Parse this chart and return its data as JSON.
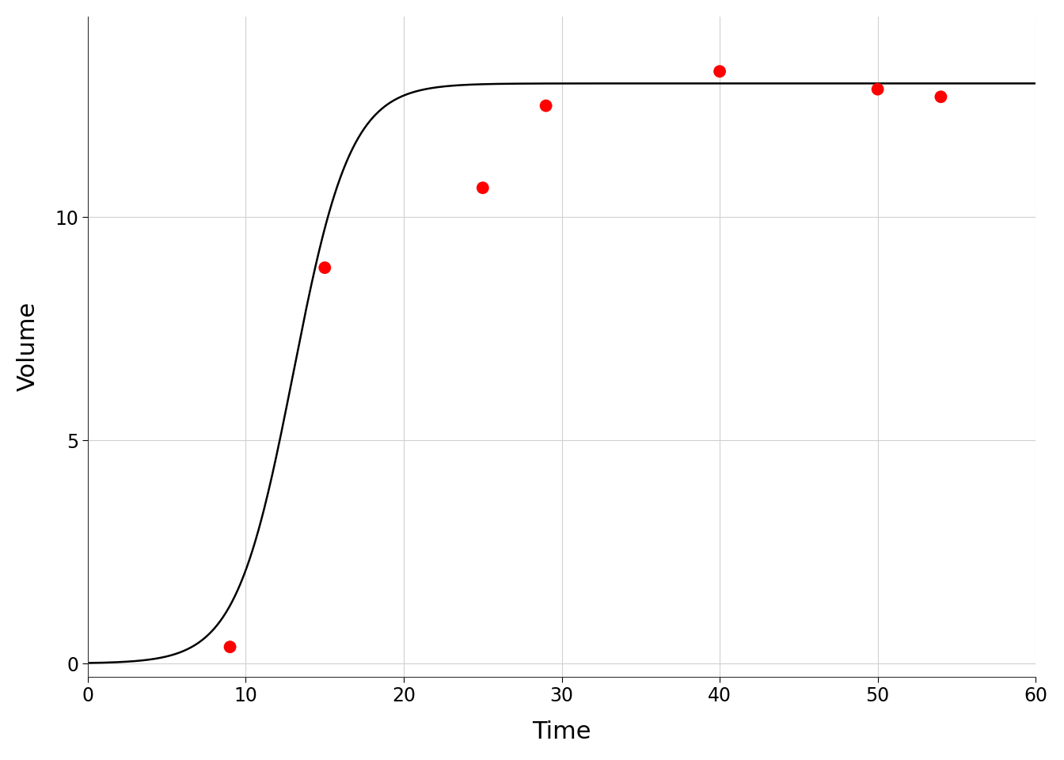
{
  "title": "",
  "xlabel": "Time",
  "ylabel": "Volume",
  "xlim": [
    0,
    60
  ],
  "ylim": [
    -0.3,
    14.5
  ],
  "xticks": [
    0,
    10,
    20,
    30,
    40,
    50,
    60
  ],
  "yticks": [
    0,
    5,
    10
  ],
  "data_x": [
    9,
    15,
    25,
    29,
    40,
    50,
    54
  ],
  "data_y": [
    0.37,
    8.87,
    10.66,
    12.5,
    13.27,
    12.87,
    12.7
  ],
  "logistic_K": 13.0,
  "logistic_r": 0.55,
  "logistic_t0": 13.0,
  "curve_color": "#000000",
  "point_color": "#FF0000",
  "point_size": 130,
  "line_width": 1.8,
  "background_color": "#ffffff",
  "grid_color": "#d0d0d0",
  "xlabel_fontsize": 22,
  "ylabel_fontsize": 22,
  "tick_fontsize": 17
}
